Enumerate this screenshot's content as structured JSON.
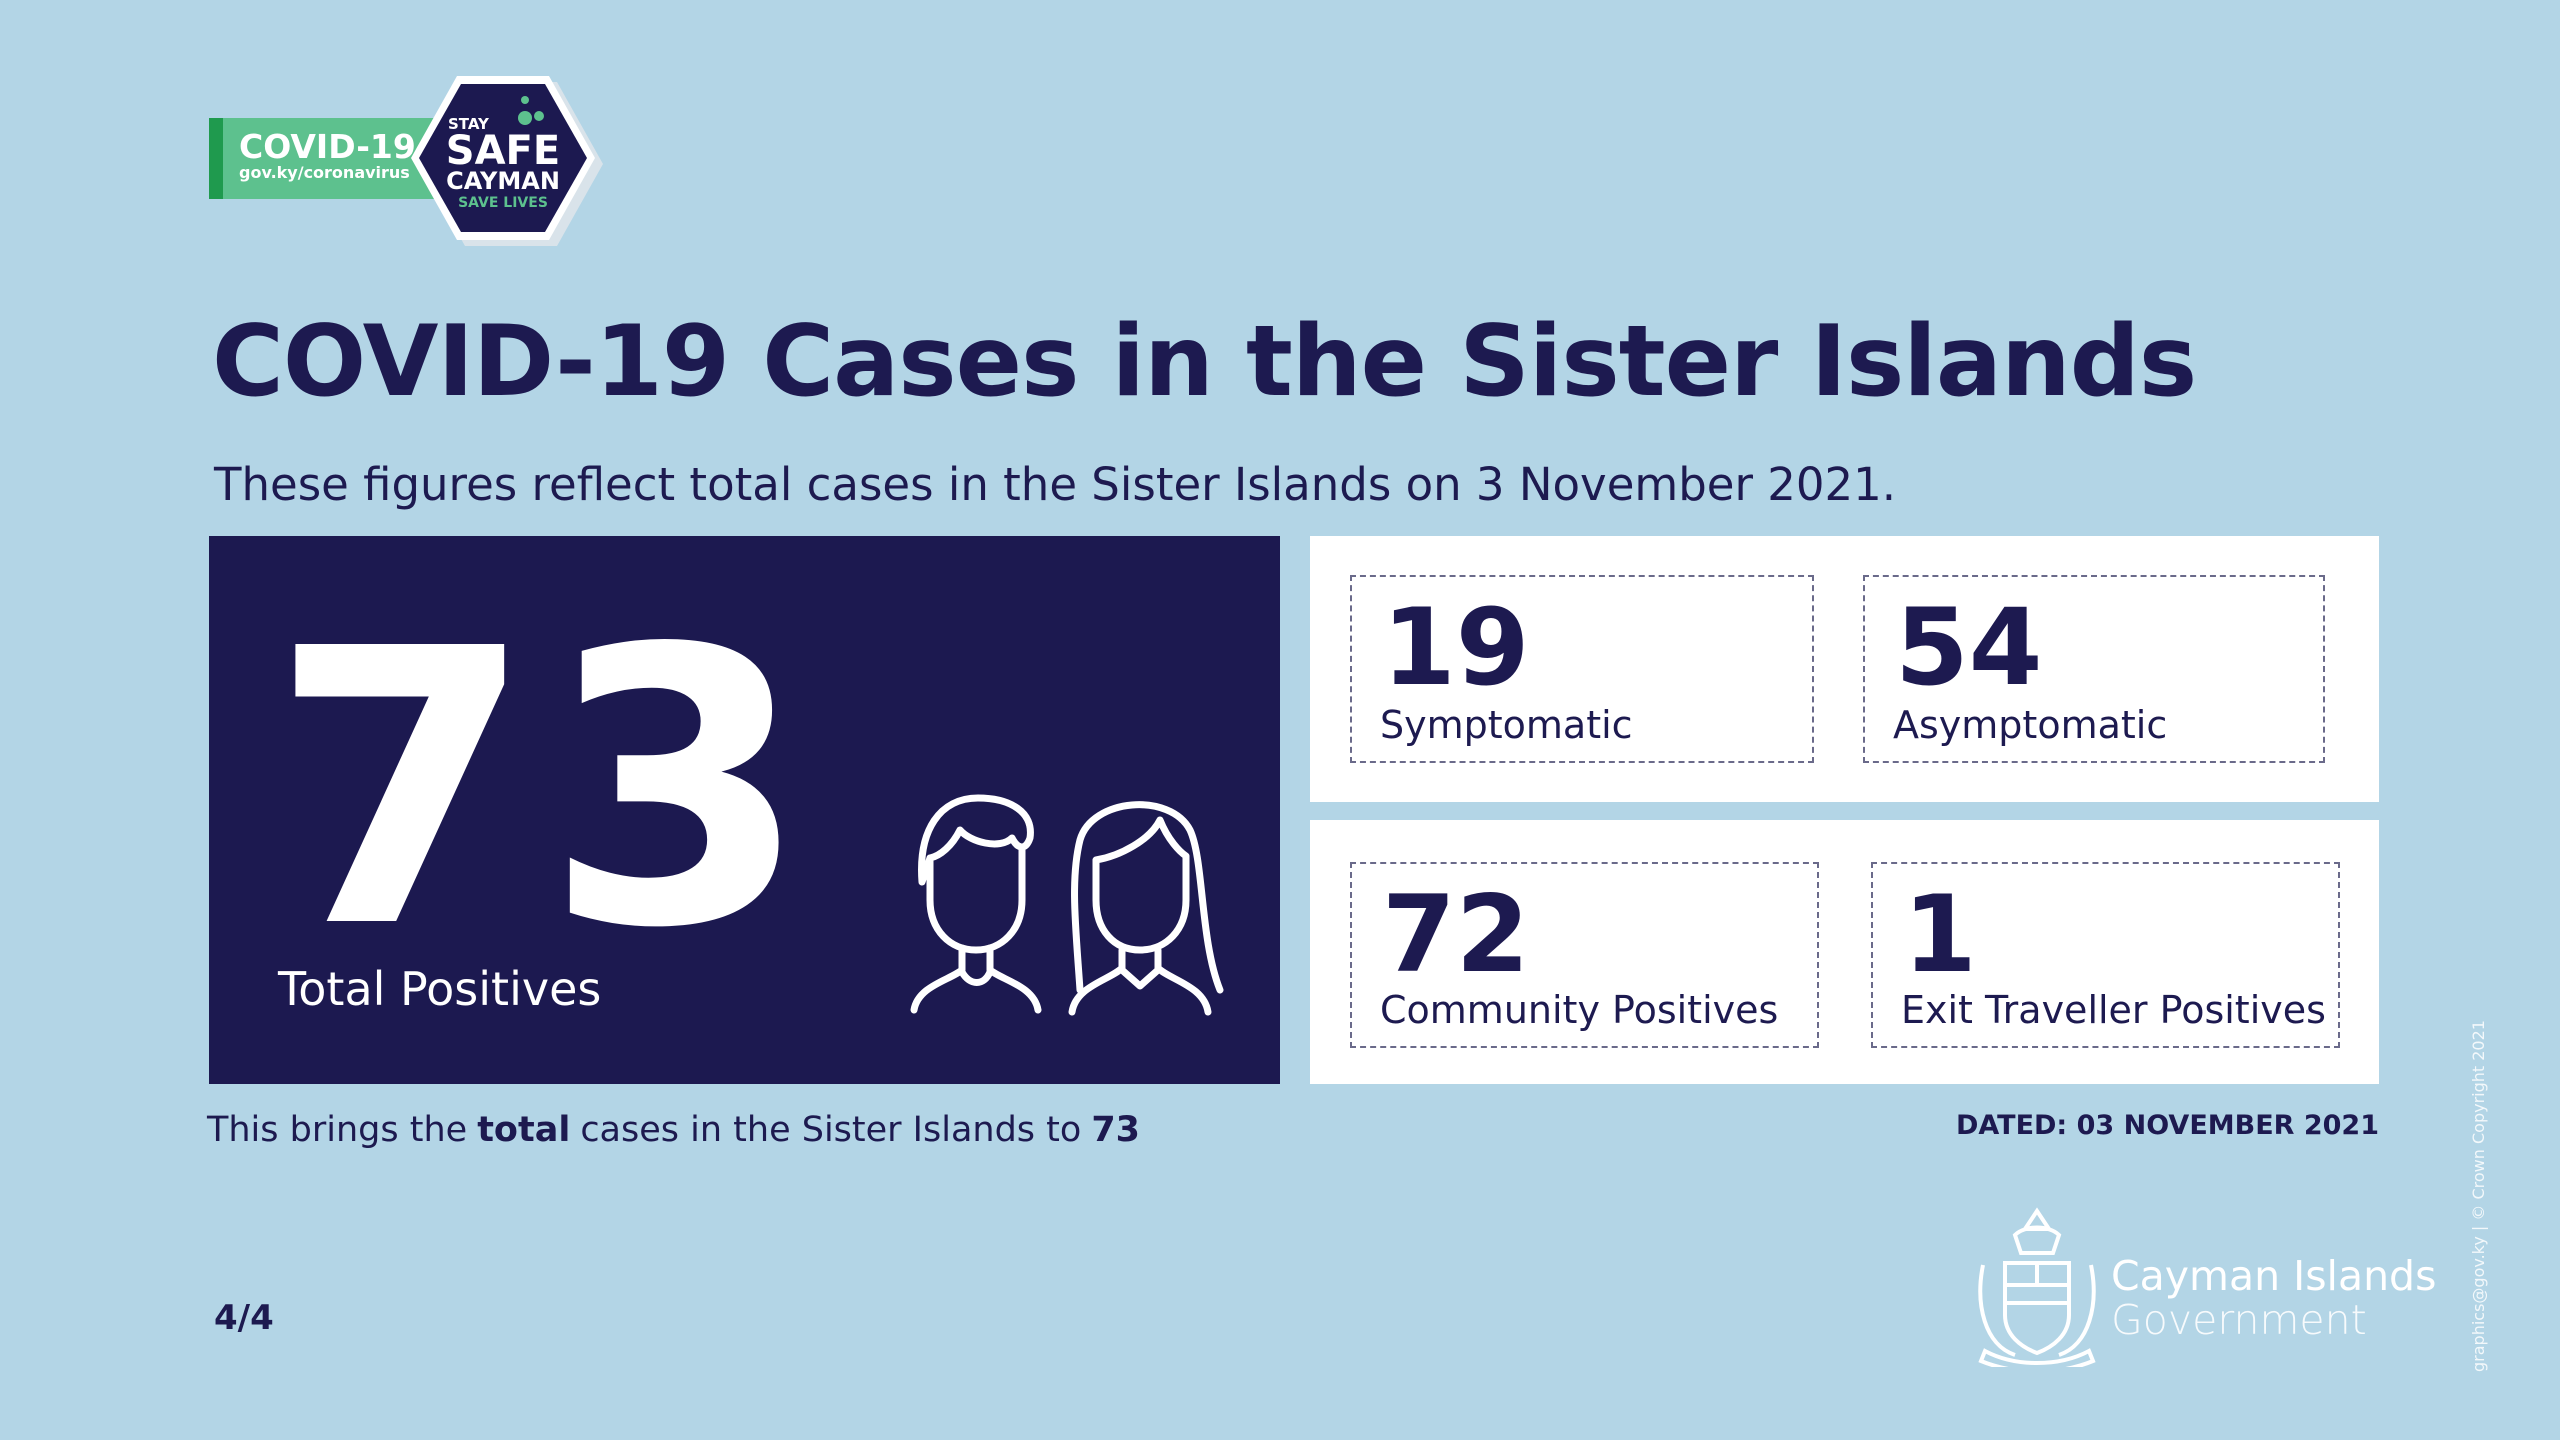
{
  "badge": {
    "label": "COVID-19",
    "url": "gov.ky/coronavirus",
    "stay": "STAY",
    "safe": "SAFE",
    "cayman": "CAYMAN",
    "save": "SAVE LIVES"
  },
  "title": "COVID-19 Cases in the Sister Islands",
  "subtitle": "These figures reflect total cases in the Sister Islands on 3 November 2021.",
  "total": {
    "value": 73,
    "label": "Total Positives"
  },
  "stats": [
    {
      "value": 19,
      "label": "Symptomatic"
    },
    {
      "value": 54,
      "label": "Asymptomatic"
    },
    {
      "value": 72,
      "label": "Community Positives"
    },
    {
      "value": 1,
      "label": "Exit Traveller Positives"
    }
  ],
  "summary": {
    "before": "This brings the",
    "emphasis": "total",
    "after": "cases in the Sister Islands to",
    "value": 73
  },
  "dated": "DATED: 03 NOVEMBER 2021",
  "page": "4/4",
  "government": {
    "line1": "Cayman Islands",
    "line2": "Government"
  },
  "credit": "graphics@gov.ky | © Crown Copyright 2021"
}
